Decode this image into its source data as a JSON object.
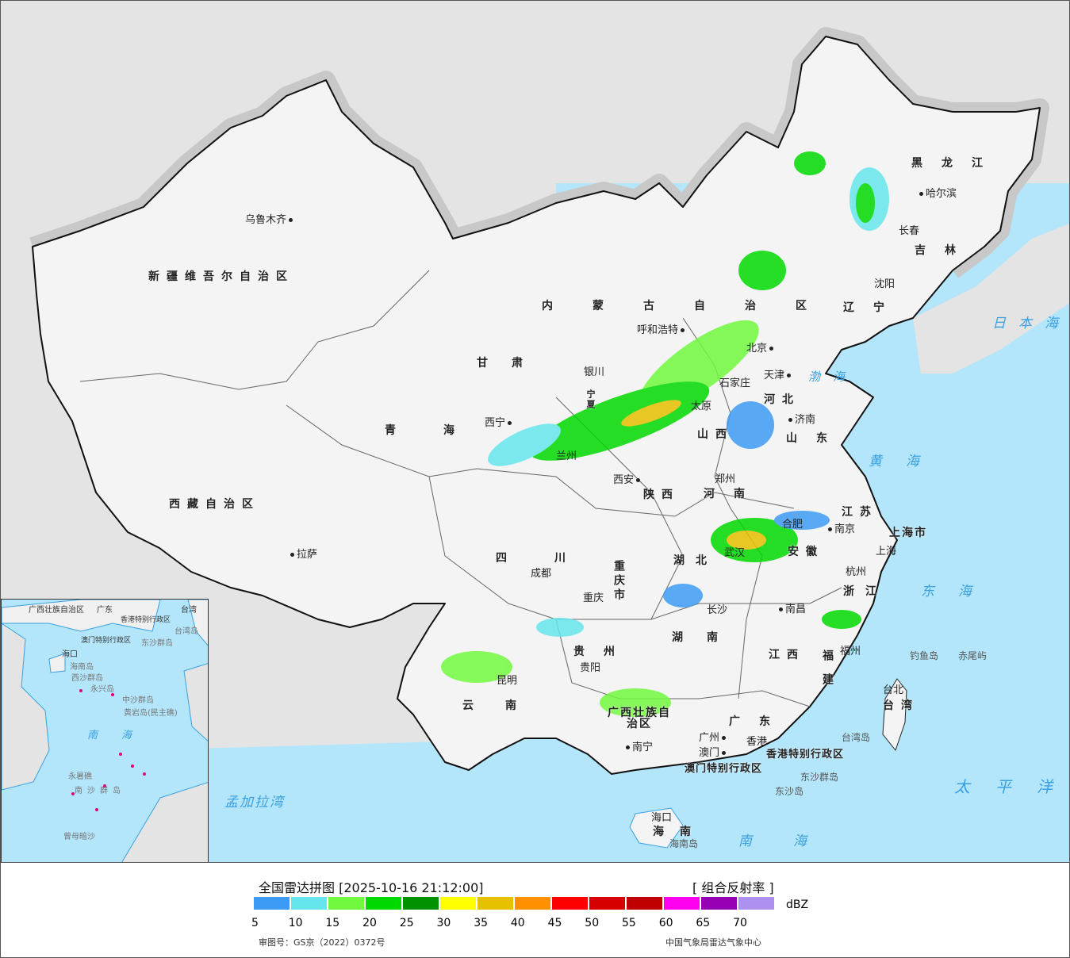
{
  "map": {
    "cities": [
      "乌鲁木齐",
      "拉萨",
      "西宁",
      "银川",
      "兰州",
      "呼和浩特",
      "北京",
      "天津",
      "石家庄",
      "太原",
      "济南",
      "郑州",
      "西安",
      "成都",
      "重庆",
      "武汉",
      "合肥",
      "南京",
      "上海",
      "杭州",
      "南昌",
      "长沙",
      "贵阳",
      "昆明",
      "南宁",
      "广州",
      "福州",
      "台北",
      "海口",
      "哈尔滨",
      "长春",
      "沈阳",
      "香港",
      "澳门"
    ],
    "provinces": [
      "新疆维吾尔自治区",
      "西藏自治区",
      "青海",
      "甘肃",
      "内蒙古自治区",
      "黑龙江",
      "吉林",
      "辽宁",
      "河北",
      "山西",
      "山东",
      "河南",
      "陕西",
      "四川",
      "湖北",
      "安徽",
      "江苏",
      "浙江",
      "江西",
      "湖南",
      "贵州",
      "云南",
      "广西壮族自治区",
      "广东",
      "福建",
      "台湾",
      "海南",
      "重庆市",
      "上海市",
      "宁夏",
      "香港特别行政区",
      "澳门特别行政区"
    ],
    "seas": [
      "日本海",
      "渤海",
      "黄海",
      "东海",
      "太平洋",
      "南海",
      "孟加拉湾"
    ],
    "islands": [
      "钓鱼岛",
      "赤尾屿",
      "台湾岛",
      "东沙群岛",
      "东沙岛",
      "海南岛"
    ],
    "inset_labels": [
      "广西壮族自治区",
      "广东",
      "台湾",
      "香港特别行政区",
      "澳门特别行政区",
      "东沙群岛",
      "西沙群岛",
      "中沙群岛",
      "黄岩岛(民主礁)",
      "南海",
      "南沙群岛",
      "曾母暗沙",
      "海口",
      "永兴岛",
      "永暑礁",
      "台湾岛",
      "海南岛"
    ]
  },
  "legend": {
    "title": "全国雷达拼图 [2025-10-16 21:12:00]",
    "product": "[ 组合反射率 ]",
    "unit": "dBZ",
    "colors": [
      "#3d9bf3",
      "#66e6ec",
      "#72f93f",
      "#00d900",
      "#009100",
      "#ffff00",
      "#e7c000",
      "#ff9000",
      "#ff0000",
      "#d60000",
      "#c00000",
      "#ff00f0",
      "#9600b4",
      "#ad90f0"
    ],
    "ticks": [
      "5",
      "10",
      "15",
      "20",
      "25",
      "30",
      "35",
      "40",
      "45",
      "50",
      "55",
      "60",
      "65",
      "70"
    ],
    "approval": "审图号：GS京（2022）0372号",
    "source": "中国气象局雷达气象中心"
  }
}
